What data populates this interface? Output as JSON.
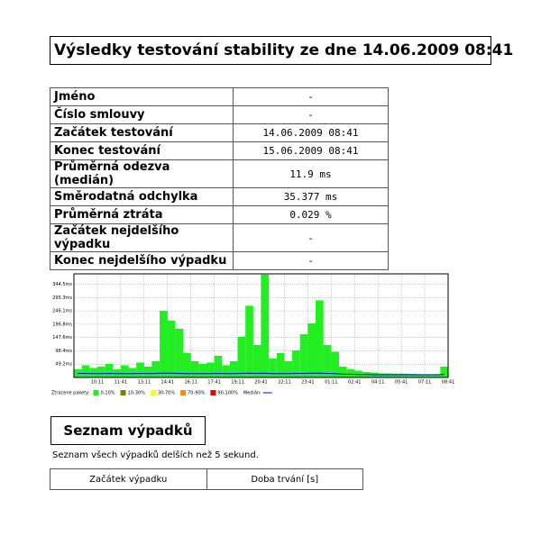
{
  "header": {
    "title": "Výsledky testování stability ze dne 14.06.2009 08:41"
  },
  "info_table": {
    "rows": [
      [
        "Jméno",
        "-"
      ],
      [
        "Číslo smlouvy",
        "-"
      ],
      [
        "Začátek testování",
        "14.06.2009 08:41"
      ],
      [
        "Konec testování",
        "15.06.2009 08:41"
      ],
      [
        "Průměrná odezva (medián)",
        "11.9 ms"
      ],
      [
        "Směrodatná odchylka",
        "35.377 ms"
      ],
      [
        "Průměrná ztráta",
        "0.029 %"
      ],
      [
        "Začátek nejdelšího výpadku",
        "-"
      ],
      [
        "Konec nejdelšího výpadku",
        "-"
      ]
    ]
  },
  "chart_data": {
    "type": "bar",
    "x": [
      0.25,
      0.75,
      1.25,
      1.75,
      2.25,
      2.75,
      3.25,
      3.75,
      4.25,
      4.75,
      5.25,
      5.75,
      6.25,
      6.75,
      7.25,
      7.75,
      8.25,
      8.75,
      9.25,
      9.75,
      10.25,
      10.75,
      11.25,
      11.75,
      12.25,
      12.75,
      13.25,
      13.75,
      14.25,
      14.75,
      15.25,
      15.75,
      16.25,
      16.75,
      17.25,
      17.75,
      18.25,
      18.75,
      19.25,
      19.75,
      20.25,
      20.75,
      21.25,
      21.75,
      22.25,
      22.75,
      23.25,
      23.75
    ],
    "series": [
      {
        "name": "0-10%",
        "color": "#22ee22",
        "values": [
          30,
          45,
          35,
          40,
          50,
          30,
          45,
          35,
          55,
          40,
          60,
          246,
          210,
          180,
          90,
          60,
          50,
          55,
          80,
          45,
          60,
          150,
          265,
          120,
          380,
          70,
          90,
          60,
          100,
          160,
          200,
          285,
          120,
          95,
          40,
          30,
          25,
          20,
          18,
          15,
          15,
          14,
          14,
          13,
          12,
          12,
          12,
          40
        ]
      },
      {
        "name": "Medián:",
        "color": "#0000ff",
        "type": "line",
        "values": [
          15,
          15,
          14,
          14,
          15,
          14,
          14,
          14,
          15,
          14,
          15,
          16,
          16,
          15,
          14,
          14,
          14,
          14,
          15,
          14,
          14,
          15,
          16,
          15,
          16,
          14,
          14,
          14,
          15,
          15,
          16,
          16,
          15,
          14,
          12,
          12,
          11,
          11,
          10,
          10,
          10,
          10,
          10,
          10,
          10,
          10,
          10,
          11
        ]
      }
    ],
    "legend_title": "Ztracené pakety:",
    "legend_only": [
      {
        "name": "10-30%",
        "color": "#808000"
      },
      {
        "name": "30-70%",
        "color": "#ffff00"
      },
      {
        "name": "70-90%",
        "color": "#ff8800"
      },
      {
        "name": "90-100%",
        "color": "#ee0000"
      }
    ],
    "xlim": [
      0,
      24
    ],
    "xticks": [
      {
        "value": 1.5,
        "label": "10:11"
      },
      {
        "value": 3,
        "label": "11:41"
      },
      {
        "value": 4.5,
        "label": "13:11"
      },
      {
        "value": 6,
        "label": "14:41"
      },
      {
        "value": 7.5,
        "label": "16:11"
      },
      {
        "value": 9,
        "label": "17:41"
      },
      {
        "value": 10.5,
        "label": "19:11"
      },
      {
        "value": 12,
        "label": "20:41"
      },
      {
        "value": 13.5,
        "label": "22:11"
      },
      {
        "value": 15,
        "label": "23:41"
      },
      {
        "value": 16.5,
        "label": "01:11"
      },
      {
        "value": 18,
        "label": "02:41"
      },
      {
        "value": 19.5,
        "label": "04:11"
      },
      {
        "value": 21,
        "label": "05:41"
      },
      {
        "value": 22.5,
        "label": "07:11"
      },
      {
        "value": 24,
        "label": "08:41"
      }
    ],
    "ylim": [
      0,
      383
    ],
    "yticks": [
      {
        "value": 49.2,
        "label": "49.2ms"
      },
      {
        "value": 98.4,
        "label": "98.4ms"
      },
      {
        "value": 147.6,
        "label": "147.6ms"
      },
      {
        "value": 196.8,
        "label": "196.8ms"
      },
      {
        "value": 246.1,
        "label": "246.1ms"
      },
      {
        "value": 295.3,
        "label": "295.3ms"
      },
      {
        "value": 344.5,
        "label": "344.5ms"
      }
    ],
    "grid": true
  },
  "outages": {
    "title": "Seznam výpadků",
    "description": "Seznam všech výpadků delších než 5 sekund.",
    "columns": [
      "Začátek výpadku",
      "Doba trvání [s]"
    ]
  }
}
